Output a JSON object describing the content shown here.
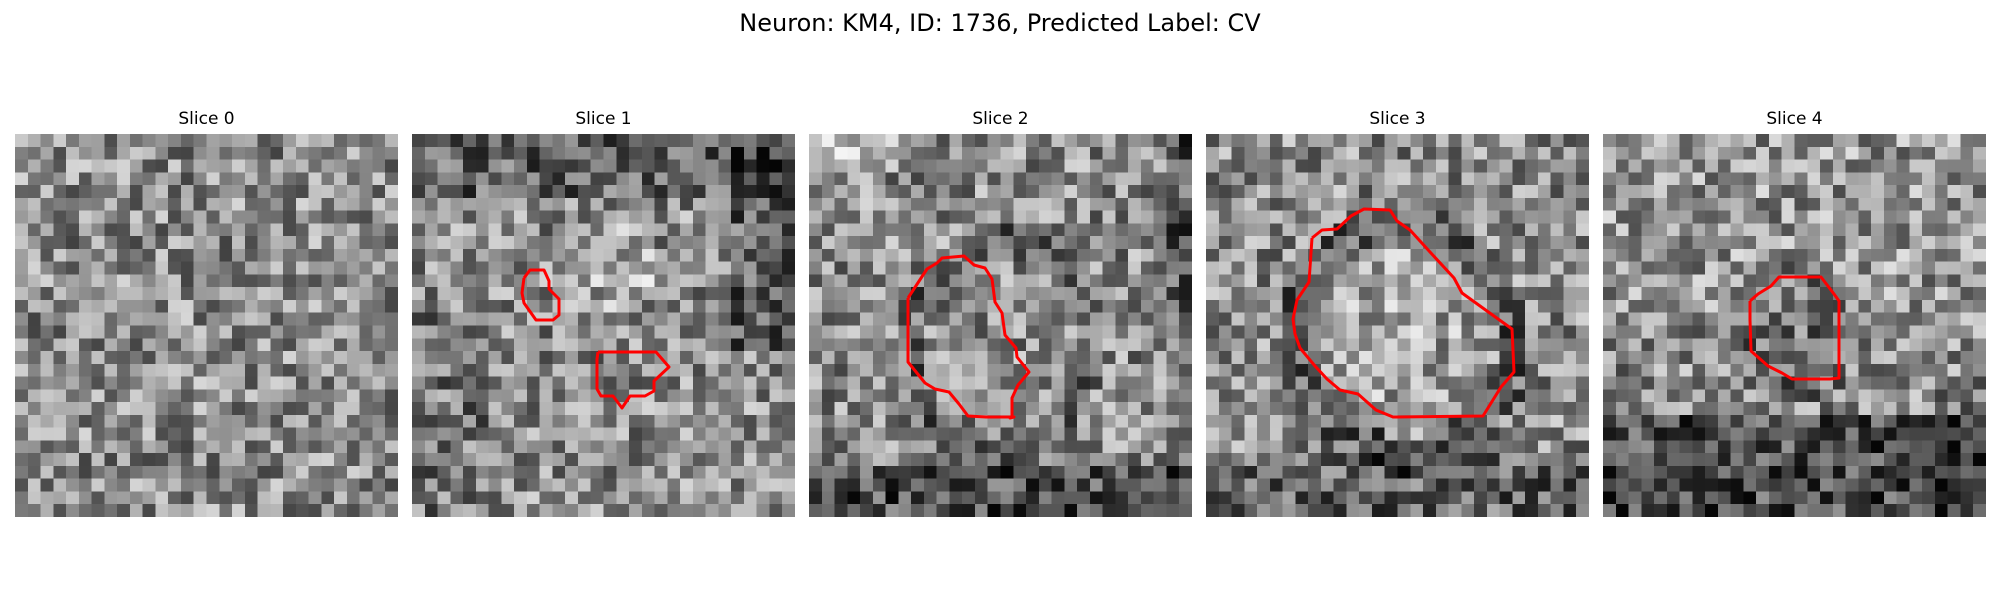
{
  "figure": {
    "title": "Neuron: KM4, ID: 1736, Predicted Label: CV"
  },
  "slices": [
    {
      "title": "Slice 0",
      "has_contour": false
    },
    {
      "title": "Slice 1",
      "has_contour": true
    },
    {
      "title": "Slice 2",
      "has_contour": true
    },
    {
      "title": "Slice 3",
      "has_contour": true
    },
    {
      "title": "Slice 4",
      "has_contour": true
    }
  ],
  "style": {
    "contour_color": "#ff0000",
    "colormap": "grayscale"
  }
}
